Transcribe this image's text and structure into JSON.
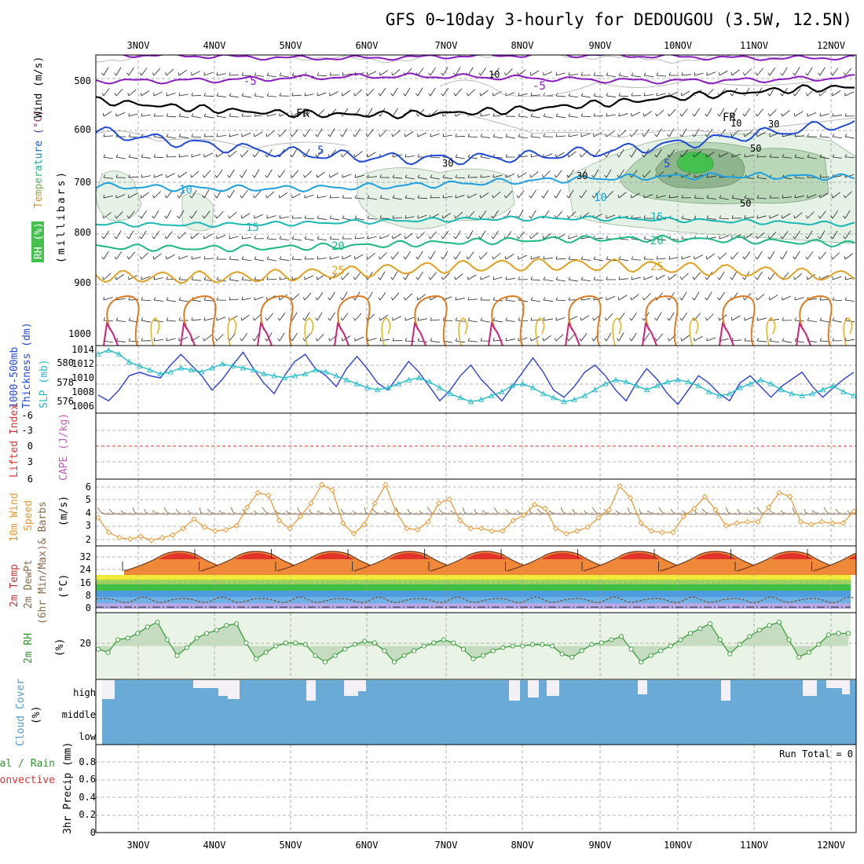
{
  "title": "GFS 0~10day 3-hourly for DEDOUGOU (3.5W, 12.5N)",
  "days": [
    "3NOV",
    "4NOV",
    "5NOV",
    "6NOV",
    "7NOV",
    "8NOV",
    "9NOV",
    "10NOV",
    "11NOV",
    "12NOV"
  ],
  "colors": {
    "temp_neg5": "#8a1cc0",
    "temp_fr": "#000000",
    "temp_5": "#1f49d8",
    "temp_10": "#1ea0e0",
    "temp_15": "#19b8b4",
    "temp_20": "#1bb885",
    "temp_25": "#e0a020",
    "rh_light": "#e6f2e6",
    "rh_mid": "#b8d8b8",
    "rh_dark": "#8fb58f",
    "rh_bright": "#44c04e",
    "thickness": "#2b3fd6",
    "slp": "#22bccc",
    "cape_zero": "#e03030",
    "wind10": "#e8962a",
    "barb10": "#8b6a4a",
    "rh2m": "#2f9a2f",
    "cloud": "#6aaad6",
    "cloud_bg": "#f3f0f6"
  },
  "panels": {
    "upper": {
      "label_wind": "Wind (m/s)",
      "label_temp": "Temperature (°C)",
      "label_rh": "RH (%)",
      "label_mb": "(millibars)",
      "y_ticks": [
        "500",
        "600",
        "700",
        "800",
        "900",
        "1000"
      ],
      "contour_labels": {
        "neg5_a": "-5",
        "neg5_b": "-5",
        "fr_a": "FR",
        "fr_b": "FR",
        "c5_a": "5",
        "c5_b": "5",
        "c10_a": "10",
        "c10_b": "10",
        "c15_a": "15",
        "c15_b": "15",
        "c20_a": "20",
        "c20_b": "20",
        "c25_a": "25",
        "c25_b": "25",
        "rh10": "10",
        "rh10b": "10",
        "rh30a": "30",
        "rh30b": "30",
        "rh30c": "30",
        "rh50a": "50",
        "rh50b": "50"
      }
    },
    "thickness": {
      "label_thick": "1000-500mb",
      "label_thick2": "Thickness (dm)",
      "label_slp": "SLP (mb)",
      "left_ticks": [
        "580",
        "578",
        "576"
      ],
      "right_ticks": [
        "1014",
        "1012",
        "1010",
        "1008",
        "1006"
      ]
    },
    "cape": {
      "label_li": "Lifted Index",
      "label_cape": "CAPE (J/kg)",
      "ticks": [
        "-6",
        "-3",
        "0",
        "3",
        "6"
      ]
    },
    "wind10m": {
      "label1": "10m Wind",
      "label2": "Speed",
      "label3": "& Barbs",
      "label4": "(m/s)",
      "ticks": [
        "6",
        "5",
        "4",
        "3",
        "2"
      ]
    },
    "temp2m": {
      "label1": "2m Temp",
      "label2": "2m DewPt",
      "label3": "(6hr Min/Max)",
      "label4": "(°C)",
      "ticks": [
        "32",
        "24",
        "16",
        "8",
        "0"
      ]
    },
    "rh2m": {
      "label1": "2m RH",
      "label2": "(%)",
      "ticks": [
        "20"
      ]
    },
    "cloud": {
      "label1": "Cloud Cover",
      "label2": "(%)",
      "levels": [
        "high",
        "middle",
        "low"
      ]
    },
    "precip": {
      "label_total": "Total / Rain",
      "label_conv": "Convective",
      "label_axis": "3hr Precip (mm)",
      "ticks": [
        "0.8",
        "0.6",
        "0.4",
        "0.2",
        "0"
      ],
      "run_total": "Run Total = 0"
    }
  },
  "chart_data": [
    {
      "type": "line",
      "name": "thickness_slp",
      "ylabel": "1000-500mb Thickness (dm)",
      "ylabel_right": "SLP (mb)",
      "ylim": [
        575,
        581.5
      ],
      "ylim_right": [
        1005.5,
        1014.5
      ],
      "series": [
        {
          "name": "SLP (mb)",
          "axis": "right",
          "values": [
            1007.8,
            1007.0,
            1008.5,
            1010.5,
            1011.0,
            1010.5,
            1010.2,
            1012.0,
            1013.5,
            1012.0,
            1010.5,
            1008.5,
            1010.0,
            1012.0,
            1013.8,
            1011.5,
            1009.5,
            1008.0,
            1010.5,
            1012.5,
            1013.5,
            1011.5,
            1010.5,
            1009.0,
            1011.5,
            1013.2,
            1011.5,
            1009.5,
            1008.5,
            1010.5,
            1012.5,
            1011.0,
            1009.0,
            1007.0,
            1008.5,
            1010.5,
            1012.0,
            1010.0,
            1008.5,
            1007.0,
            1009.0,
            1011.0,
            1013.0,
            1011.0,
            1008.5,
            1007.5,
            1009.0,
            1011.0,
            1012.0,
            1010.5,
            1008.5,
            1007.0,
            1009.5,
            1011.5,
            1010.0,
            1008.0,
            1006.5,
            1008.5,
            1010.5,
            1009.5,
            1008.0,
            1007.0,
            1009.5,
            1010.5,
            1009.0,
            1007.5,
            1009.0,
            1010.0,
            1011.0,
            1009.0,
            1007.5,
            1008.8,
            1010.0,
            1011.0
          ]
        },
        {
          "name": "Thickness (dm)",
          "axis": "left",
          "values": [
            580.8,
            581.2,
            580.8,
            580.0,
            579.6,
            579.2,
            578.8,
            579.0,
            579.4,
            579.2,
            579.0,
            579.4,
            579.8,
            579.6,
            579.4,
            579.2,
            578.8,
            578.6,
            578.4,
            578.6,
            578.8,
            579.2,
            579.0,
            578.6,
            578.2,
            577.8,
            577.4,
            577.2,
            577.4,
            577.8,
            578.2,
            578.4,
            578.0,
            577.4,
            576.8,
            576.4,
            576.0,
            576.2,
            576.6,
            577.0,
            577.6,
            577.8,
            577.4,
            576.8,
            576.4,
            576.0,
            576.2,
            576.6,
            577.2,
            577.8,
            578.2,
            578.0,
            577.6,
            577.2,
            577.6,
            578.0,
            578.2,
            578.0,
            577.6,
            577.0,
            576.6,
            576.8,
            577.4,
            577.8,
            578.2,
            577.8,
            577.2,
            576.8,
            576.6,
            576.8,
            577.2,
            577.6,
            577.0,
            576.6
          ]
        }
      ]
    },
    {
      "type": "line",
      "name": "cape_lifted_index",
      "ylabel": "Lifted Index / CAPE (J/kg)",
      "ylim": [
        -6,
        6
      ],
      "series": [
        {
          "name": "zero line",
          "values": [
            0
          ]
        }
      ]
    },
    {
      "type": "line",
      "name": "wind10m_speed",
      "ylabel": "10m Wind Speed & Barbs (m/s)",
      "ylim": [
        1.6,
        6.4
      ],
      "series": [
        {
          "name": "Speed (m/s)",
          "values": [
            3.6,
            2.5,
            2.1,
            2.0,
            2.2,
            1.9,
            2.1,
            2.3,
            2.8,
            3.5,
            2.9,
            2.6,
            2.7,
            3.0,
            4.4,
            5.5,
            5.3,
            3.4,
            2.8,
            3.7,
            4.7,
            6.1,
            5.7,
            3.2,
            2.4,
            3.1,
            4.7,
            6.1,
            4.0,
            2.8,
            2.7,
            3.3,
            4.7,
            5.0,
            3.4,
            2.8,
            2.8,
            2.6,
            2.6,
            3.4,
            3.8,
            4.6,
            4.3,
            2.8,
            2.4,
            2.6,
            2.9,
            3.6,
            4.2,
            6.0,
            5.1,
            3.2,
            2.6,
            2.5,
            2.5,
            3.7,
            4.3,
            5.2,
            4.2,
            3.0,
            3.2,
            3.3,
            3.3,
            4.4,
            5.5,
            5.2,
            3.3,
            3.1,
            3.3,
            3.2,
            3.2,
            4.1
          ]
        }
      ]
    },
    {
      "type": "line",
      "name": "rh2m",
      "ylabel": "2m RH (%)",
      "series": [
        {
          "name": "RH (%)",
          "values": [
            18,
            16,
            24,
            25,
            28,
            32,
            35,
            24,
            14,
            19,
            25,
            28,
            30,
            33,
            34,
            22,
            12,
            16,
            20,
            22,
            22,
            21,
            14,
            10,
            14,
            18,
            21,
            23,
            22,
            17,
            10,
            14,
            17,
            20,
            22,
            24,
            22,
            18,
            12,
            14,
            17,
            19,
            20,
            20,
            21,
            21,
            20,
            15,
            13,
            17,
            21,
            22,
            24,
            26,
            18,
            10,
            14,
            17,
            20,
            24,
            28,
            31,
            34,
            24,
            15,
            21,
            26,
            30,
            33,
            35,
            24,
            13,
            16,
            21,
            27,
            28,
            28
          ]
        }
      ]
    }
  ]
}
